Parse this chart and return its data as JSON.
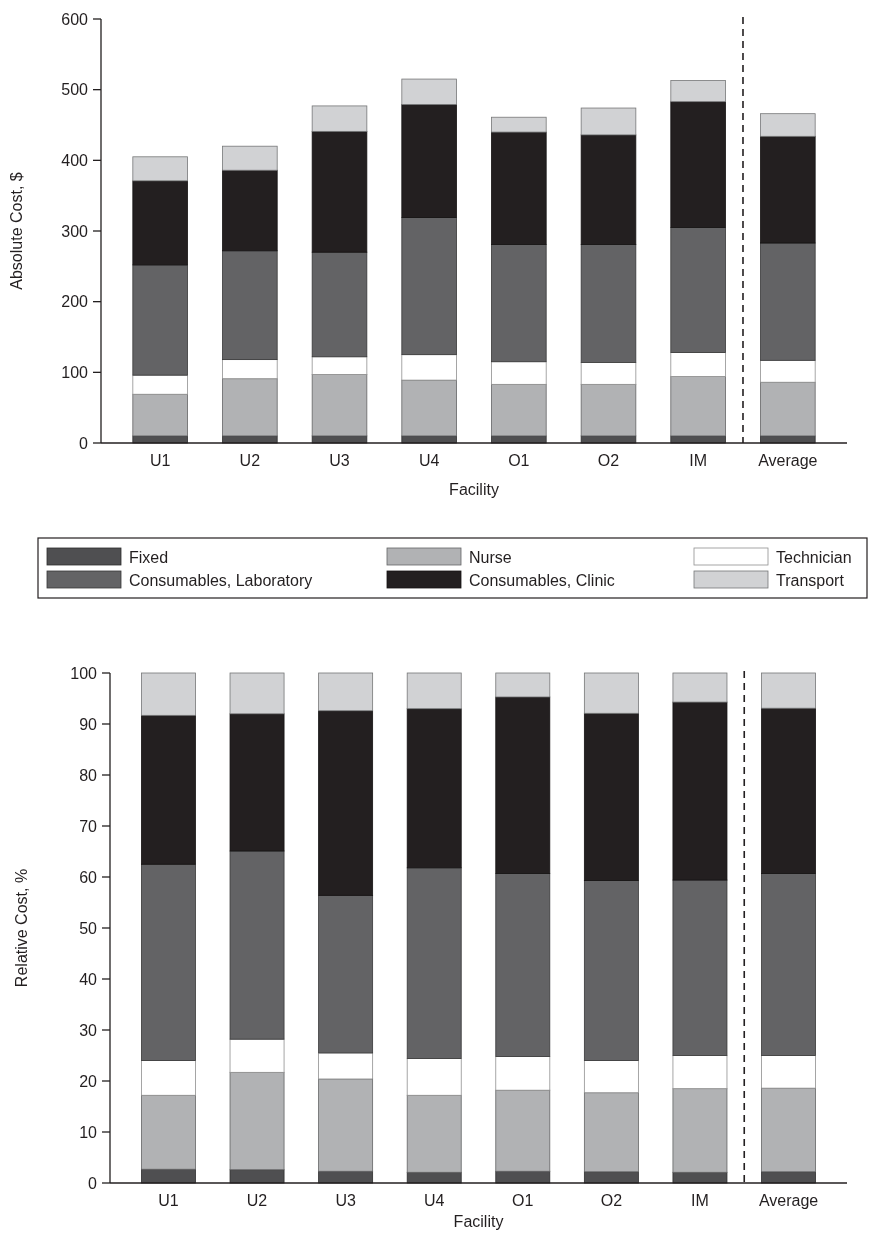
{
  "chart_data": [
    {
      "type": "bar",
      "stacked": true,
      "xlabel": "Facility",
      "ylabel": "Absolute Cost, $",
      "categories": [
        "U1",
        "U2",
        "U3",
        "U4",
        "O1",
        "O2",
        "IM",
        "Average"
      ],
      "ylim": [
        0,
        600
      ],
      "yticks": [
        0,
        100,
        200,
        300,
        400,
        500,
        600
      ],
      "legend": "bottom",
      "series": [
        {
          "name": "Fixed",
          "color": "#4f4f51",
          "values": [
            10,
            10,
            10,
            10,
            10,
            10,
            10,
            10
          ]
        },
        {
          "name": "Nurse",
          "color": "#b1b2b4",
          "values": [
            59,
            81,
            87,
            79,
            73,
            73,
            84,
            76
          ]
        },
        {
          "name": "Technician",
          "color": "#ffffff",
          "values": [
            27,
            27,
            25,
            36,
            32,
            31,
            34,
            31
          ]
        },
        {
          "name": "Consumables, Laboratory",
          "color": "#636365",
          "values": [
            156,
            154,
            148,
            194,
            166,
            167,
            177,
            166
          ]
        },
        {
          "name": "Consumables, Clinic",
          "color": "#231f20",
          "values": [
            119,
            114,
            171,
            160,
            159,
            155,
            178,
            151
          ]
        },
        {
          "name": "Transport",
          "color": "#d1d2d4",
          "values": [
            34,
            34,
            36,
            36,
            21,
            38,
            30,
            32
          ]
        }
      ]
    },
    {
      "type": "bar",
      "stacked": true,
      "xlabel": "Facility",
      "ylabel": "Relative Cost, %",
      "categories": [
        "U1",
        "U2",
        "U3",
        "U4",
        "O1",
        "O2",
        "IM",
        "Average"
      ],
      "ylim": [
        0,
        100
      ],
      "yticks": [
        0,
        10,
        20,
        30,
        40,
        50,
        60,
        70,
        80,
        90,
        100
      ],
      "series": [
        {
          "color": "#4f4f51",
          "values": [
            2.7,
            2.6,
            2.3,
            2.1,
            2.3,
            2.2,
            2.1,
            2.2
          ]
        },
        {
          "color": "#b1b2b4",
          "values": [
            14.5,
            19.1,
            18.1,
            15.1,
            15.9,
            15.5,
            16.4,
            16.4
          ]
        },
        {
          "color": "#ffffff",
          "values": [
            6.8,
            6.5,
            5.1,
            7.2,
            6.6,
            6.3,
            6.5,
            6.4
          ]
        },
        {
          "color": "#636365",
          "values": [
            38.5,
            36.9,
            30.9,
            37.4,
            35.9,
            35.3,
            34.4,
            35.7
          ]
        },
        {
          "color": "#231f20",
          "values": [
            29.2,
            26.9,
            36.2,
            31.2,
            34.6,
            32.8,
            34.9,
            32.4
          ]
        },
        {
          "color": "#d1d2d4",
          "values": [
            8.3,
            8.0,
            7.4,
            7.0,
            4.7,
            7.9,
            5.7,
            6.9
          ]
        }
      ]
    }
  ]
}
